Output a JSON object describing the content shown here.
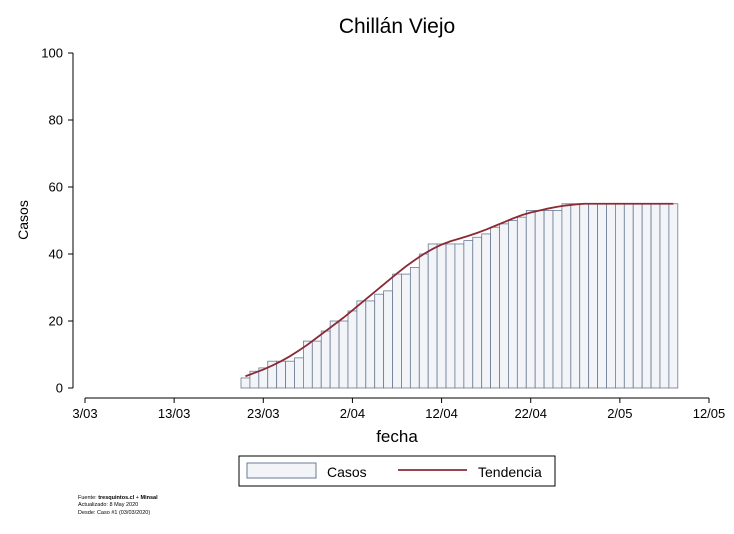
{
  "chart_data": {
    "type": "bar",
    "title": "Chillán Viejo",
    "xlabel": "fecha",
    "ylabel": "Casos",
    "ylim": [
      0,
      100
    ],
    "yticks": [
      0,
      20,
      40,
      60,
      80,
      100
    ],
    "xlim": [
      "2020-03-03",
      "2020-05-12"
    ],
    "xticks": [
      {
        "date": "2020-03-03",
        "label": "3/03"
      },
      {
        "date": "2020-03-13",
        "label": "13/03"
      },
      {
        "date": "2020-03-23",
        "label": "23/03"
      },
      {
        "date": "2020-04-02",
        "label": "2/04"
      },
      {
        "date": "2020-04-12",
        "label": "12/04"
      },
      {
        "date": "2020-04-22",
        "label": "22/04"
      },
      {
        "date": "2020-05-02",
        "label": "2/05"
      },
      {
        "date": "2020-05-12",
        "label": "12/05"
      }
    ],
    "grid": false,
    "legend_position": "bottom",
    "series": [
      {
        "name": "Casos",
        "type": "bar",
        "color": "#f2f4f7",
        "edge_color": "#6a7b94",
        "x": [
          "2020-03-21",
          "2020-03-22",
          "2020-03-23",
          "2020-03-24",
          "2020-03-25",
          "2020-03-26",
          "2020-03-27",
          "2020-03-28",
          "2020-03-29",
          "2020-03-30",
          "2020-03-31",
          "2020-04-01",
          "2020-04-02",
          "2020-04-03",
          "2020-04-04",
          "2020-04-05",
          "2020-04-06",
          "2020-04-07",
          "2020-04-08",
          "2020-04-09",
          "2020-04-10",
          "2020-04-11",
          "2020-04-12",
          "2020-04-13",
          "2020-04-14",
          "2020-04-15",
          "2020-04-16",
          "2020-04-17",
          "2020-04-18",
          "2020-04-19",
          "2020-04-20",
          "2020-04-21",
          "2020-04-22",
          "2020-04-23",
          "2020-04-24",
          "2020-04-25",
          "2020-04-26",
          "2020-04-27",
          "2020-04-28",
          "2020-04-29",
          "2020-04-30",
          "2020-05-01",
          "2020-05-02",
          "2020-05-03",
          "2020-05-04",
          "2020-05-05",
          "2020-05-06",
          "2020-05-07",
          "2020-05-08"
        ],
        "values": [
          3,
          5,
          6,
          8,
          8,
          8,
          9,
          14,
          14,
          17,
          20,
          20,
          23,
          26,
          26,
          28,
          29,
          34,
          34,
          36,
          40,
          43,
          43,
          43,
          43,
          44,
          45,
          46,
          48,
          49,
          50,
          51,
          53,
          53,
          53,
          53,
          55,
          55,
          55,
          55,
          55,
          55,
          55,
          55,
          55,
          55,
          55,
          55,
          55
        ]
      },
      {
        "name": "Tendencia",
        "type": "line",
        "color": "#8b2a35",
        "x": [
          "2020-03-21",
          "2020-03-22",
          "2020-03-23",
          "2020-03-24",
          "2020-03-25",
          "2020-03-26",
          "2020-03-27",
          "2020-03-28",
          "2020-03-29",
          "2020-03-30",
          "2020-03-31",
          "2020-04-01",
          "2020-04-02",
          "2020-04-03",
          "2020-04-04",
          "2020-04-05",
          "2020-04-06",
          "2020-04-07",
          "2020-04-08",
          "2020-04-09",
          "2020-04-10",
          "2020-04-11",
          "2020-04-12",
          "2020-04-13",
          "2020-04-14",
          "2020-04-15",
          "2020-04-16",
          "2020-04-17",
          "2020-04-18",
          "2020-04-19",
          "2020-04-20",
          "2020-04-21",
          "2020-04-22",
          "2020-04-23",
          "2020-04-24",
          "2020-04-25",
          "2020-04-26",
          "2020-04-27",
          "2020-04-28",
          "2020-04-29",
          "2020-04-30",
          "2020-05-01",
          "2020-05-02",
          "2020-05-03",
          "2020-05-04",
          "2020-05-05",
          "2020-05-06",
          "2020-05-07",
          "2020-05-08"
        ],
        "values": [
          3.5,
          4.5,
          5.5,
          6.7,
          8.0,
          9.5,
          11.2,
          13.0,
          15.0,
          17.0,
          19.0,
          21.0,
          23.2,
          25.4,
          27.6,
          29.8,
          32.0,
          34.2,
          36.3,
          38.2,
          40.0,
          41.5,
          42.8,
          43.8,
          44.6,
          45.4,
          46.3,
          47.3,
          48.4,
          49.5,
          50.6,
          51.6,
          52.4,
          53.0,
          53.6,
          54.1,
          54.5,
          54.8,
          55.0,
          55.0,
          55.0,
          55.0,
          55.0,
          55.0,
          55.0,
          55.0,
          55.0,
          55.0,
          55.0
        ]
      }
    ]
  },
  "footnote": {
    "source_prefix": "Fuente: ",
    "source_bold": "tresquintos.cl",
    "source_sep": " + ",
    "source_bold2": "Minsal",
    "updated": "Actualizado: 8 May 2020",
    "since": "Desde: Caso #1  (03/03/2020)"
  }
}
